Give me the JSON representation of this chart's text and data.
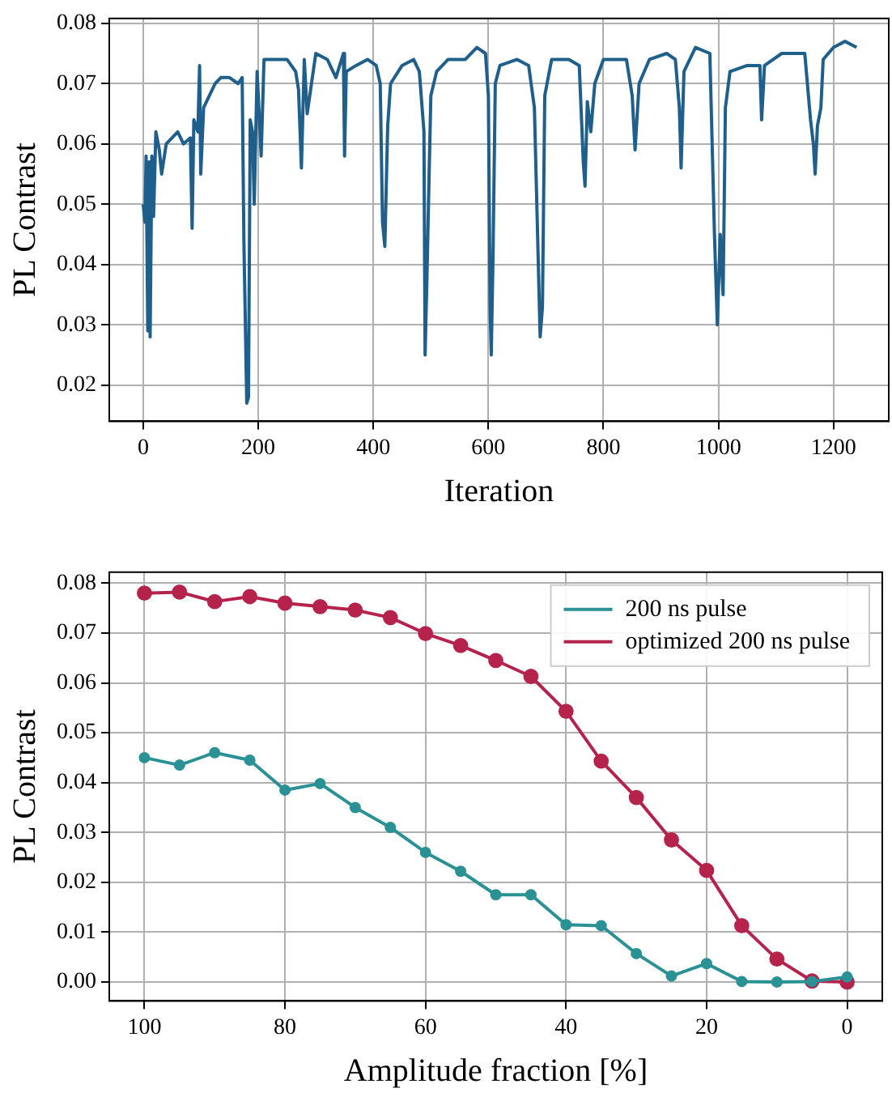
{
  "chart_data": [
    {
      "type": "line",
      "xlabel": "Iteration",
      "ylabel": "PL Contrast",
      "xlim": [
        -59,
        1296
      ],
      "xticks": [
        0,
        200,
        400,
        600,
        800,
        1000,
        1200
      ],
      "ylim": [
        0.014,
        0.0808
      ],
      "yticks": [
        0.02,
        0.03,
        0.04,
        0.05,
        0.06,
        0.07,
        0.08
      ],
      "grid": true,
      "legend": false,
      "marker": "none",
      "line_style": "solid",
      "series": [
        {
          "color": "#1f5f8b",
          "x": [
            0,
            3,
            5,
            8,
            10,
            12,
            15,
            18,
            22,
            28,
            32,
            40,
            50,
            60,
            70,
            82,
            85,
            88,
            95,
            98,
            100,
            105,
            115,
            125,
            135,
            150,
            165,
            172,
            175,
            180,
            183,
            186,
            190,
            193,
            198,
            205,
            210,
            230,
            250,
            265,
            270,
            275,
            280,
            285,
            300,
            320,
            335,
            348,
            350,
            353,
            370,
            390,
            405,
            412,
            416,
            420,
            425,
            430,
            450,
            470,
            480,
            488,
            490,
            493,
            497,
            500,
            510,
            530,
            560,
            580,
            595,
            600,
            603,
            605,
            608,
            612,
            620,
            650,
            670,
            680,
            690,
            694,
            698,
            710,
            740,
            758,
            765,
            768,
            772,
            778,
            785,
            800,
            820,
            840,
            850,
            855,
            862,
            880,
            910,
            925,
            932,
            935,
            940,
            960,
            985,
            993,
            998,
            1003,
            1008,
            1012,
            1020,
            1050,
            1072,
            1075,
            1080,
            1110,
            1150,
            1160,
            1165,
            1168,
            1172,
            1178,
            1182,
            1200,
            1220,
            1240
          ],
          "values": [
            0.05,
            0.047,
            0.058,
            0.029,
            0.057,
            0.028,
            0.058,
            0.048,
            0.062,
            0.059,
            0.055,
            0.06,
            0.061,
            0.062,
            0.06,
            0.061,
            0.046,
            0.064,
            0.062,
            0.073,
            0.055,
            0.066,
            0.068,
            0.07,
            0.071,
            0.071,
            0.07,
            0.071,
            0.044,
            0.017,
            0.018,
            0.064,
            0.062,
            0.05,
            0.072,
            0.058,
            0.074,
            0.074,
            0.074,
            0.072,
            0.069,
            0.056,
            0.074,
            0.065,
            0.075,
            0.074,
            0.071,
            0.075,
            0.058,
            0.072,
            0.073,
            0.074,
            0.073,
            0.07,
            0.047,
            0.043,
            0.063,
            0.07,
            0.073,
            0.074,
            0.072,
            0.062,
            0.025,
            0.037,
            0.055,
            0.068,
            0.072,
            0.074,
            0.074,
            0.076,
            0.075,
            0.068,
            0.033,
            0.025,
            0.041,
            0.07,
            0.073,
            0.074,
            0.073,
            0.066,
            0.028,
            0.033,
            0.068,
            0.074,
            0.074,
            0.073,
            0.057,
            0.053,
            0.067,
            0.062,
            0.07,
            0.074,
            0.074,
            0.074,
            0.068,
            0.059,
            0.07,
            0.074,
            0.075,
            0.074,
            0.066,
            0.056,
            0.072,
            0.076,
            0.075,
            0.045,
            0.03,
            0.045,
            0.035,
            0.066,
            0.072,
            0.073,
            0.073,
            0.064,
            0.073,
            0.075,
            0.075,
            0.064,
            0.06,
            0.055,
            0.063,
            0.066,
            0.074,
            0.076,
            0.077,
            0.076
          ]
        }
      ]
    },
    {
      "type": "line",
      "xlabel": "Amplitude fraction [%]",
      "ylabel": "PL Contrast",
      "xlim": [
        105,
        -5
      ],
      "xticks": [
        100,
        80,
        60,
        40,
        20,
        0
      ],
      "ylim": [
        -0.0038,
        0.0822
      ],
      "yticks": [
        {
          "value": 0,
          "label": "0.00"
        },
        0.01,
        0.02,
        0.03,
        0.04,
        0.05,
        0.06,
        0.07,
        0.08
      ],
      "grid": true,
      "legend": "top right",
      "marker": "circle",
      "line_style": "solid",
      "x": [
        100,
        95,
        90,
        85,
        80,
        75,
        70,
        65,
        60,
        55,
        50,
        45,
        40,
        35,
        30,
        25,
        20,
        15,
        10,
        5,
        0
      ],
      "series": [
        {
          "name": "200 ns pulse",
          "color": "#2a9195",
          "values": [
            0.045,
            0.0435,
            0.046,
            0.0445,
            0.0385,
            0.0398,
            0.035,
            0.031,
            0.026,
            0.0222,
            0.0175,
            0.0175,
            0.0115,
            0.0113,
            0.0057,
            0.0012,
            0.0037,
            0.0001,
            0.0,
            0.0001,
            0.001
          ]
        },
        {
          "name": "optimized 200 ns pulse",
          "color": "#b5234c",
          "values": [
            0.078,
            0.0782,
            0.0763,
            0.0773,
            0.076,
            0.0753,
            0.0746,
            0.0731,
            0.0699,
            0.0675,
            0.0645,
            0.0613,
            0.0543,
            0.0443,
            0.037,
            0.0285,
            0.0224,
            0.0113,
            0.0046,
            0.0002,
            0.0
          ]
        }
      ]
    }
  ]
}
